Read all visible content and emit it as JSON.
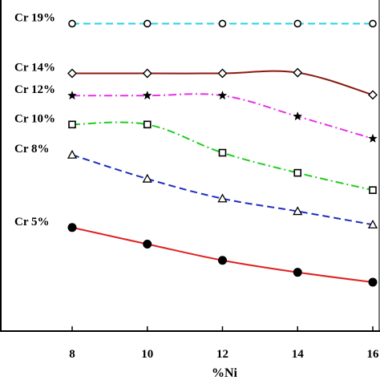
{
  "chart_data": {
    "type": "line",
    "xlabel": "%Ni",
    "ylabel": "",
    "x": [
      8,
      10,
      12,
      14,
      16
    ],
    "xtick_labels": [
      "8",
      "10",
      "12",
      "14",
      "16"
    ],
    "xlim": [
      8,
      16
    ],
    "grid": false,
    "legend": "inline labels at left",
    "series": [
      {
        "name": "Cr 19%",
        "values": [
          9.33,
          9.33,
          9.33,
          9.33,
          9.33
        ],
        "color": "#22d3e6",
        "dash": "dashed",
        "marker": "circle-open"
      },
      {
        "name": "Cr 14%",
        "values": [
          7.92,
          7.92,
          7.92,
          7.94,
          7.31
        ],
        "color": "#8b1a10",
        "dash": "solid",
        "marker": "diamond-open"
      },
      {
        "name": "Cr 12%",
        "values": [
          7.29,
          7.29,
          7.29,
          6.7,
          6.07
        ],
        "color": "#e633e6",
        "dash": "dash-dot",
        "marker": "star"
      },
      {
        "name": "Cr 10%",
        "values": [
          6.47,
          6.47,
          5.67,
          5.1,
          4.61
        ],
        "color": "#22cc22",
        "dash": "dash-dot",
        "marker": "square-open"
      },
      {
        "name": "Cr 8%",
        "values": [
          5.61,
          4.93,
          4.37,
          4.01,
          3.63
        ],
        "color": "#1f2fbf",
        "dash": "dashed",
        "marker": "triangle-open"
      },
      {
        "name": "Cr 5%",
        "values": [
          3.55,
          3.08,
          2.62,
          2.28,
          2.0
        ],
        "color": "#e02020",
        "dash": "solid",
        "marker": "circle-filled"
      }
    ]
  }
}
